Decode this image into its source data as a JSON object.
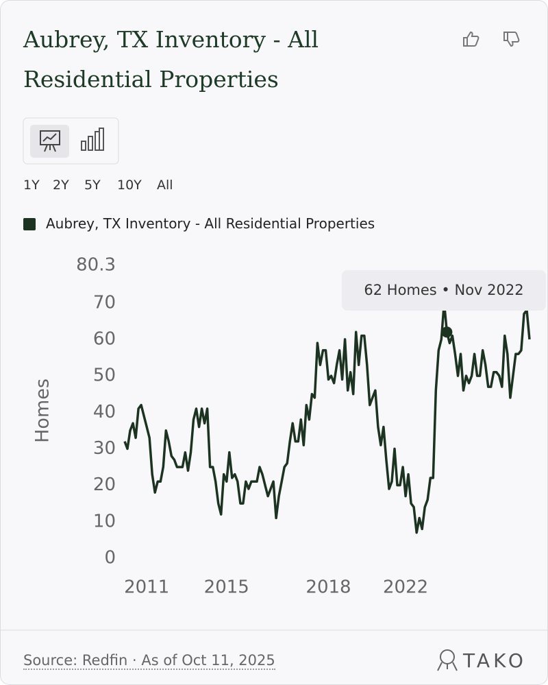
{
  "header": {
    "title": "Aubrey, TX Inventory - All Residential Properties"
  },
  "range_options": [
    "1Y",
    "2Y",
    "5Y",
    "10Y",
    "All"
  ],
  "chart_data": {
    "type": "line",
    "y_label": "Homes",
    "categories": [
      null,
      null,
      null,
      null,
      null,
      null,
      null,
      null,
      "2011",
      null,
      null,
      null,
      null,
      null,
      null,
      null,
      null,
      null,
      null,
      null,
      null,
      null,
      null,
      null,
      null,
      null,
      null,
      null,
      null,
      null,
      null,
      null,
      null,
      null,
      null,
      null,
      null,
      "2015",
      null,
      null,
      null,
      null,
      null,
      null,
      null,
      null,
      null,
      null,
      null,
      null,
      null,
      null,
      null,
      null,
      null,
      null,
      null,
      null,
      null,
      null,
      null,
      null,
      null,
      null,
      null,
      null,
      null,
      null,
      null,
      null,
      null,
      null,
      null,
      null,
      "2018",
      null,
      null,
      null,
      null,
      null,
      null,
      null,
      null,
      null,
      null,
      null,
      null,
      null,
      null,
      null,
      null,
      null,
      null,
      null,
      null,
      null,
      null,
      null,
      null,
      null,
      null,
      null,
      "2022",
      null,
      null,
      null,
      null,
      null,
      null,
      null,
      null,
      null,
      null,
      null,
      null,
      null,
      null,
      null,
      null,
      null,
      null,
      null,
      null,
      null,
      null,
      null,
      null,
      null,
      null,
      null,
      null,
      null,
      null,
      null,
      null,
      null,
      null,
      null,
      null,
      null,
      null,
      null,
      null,
      null,
      null,
      null,
      null,
      null
    ],
    "series": [
      {
        "name": "Aubrey, TX Inventory - All Residential Properties",
        "color": "#1b3320",
        "values": [
          32,
          30,
          35,
          37,
          33,
          41,
          42,
          39,
          36,
          33,
          23,
          18,
          21,
          21,
          25,
          35,
          32,
          28,
          27,
          25,
          25,
          25,
          29,
          24,
          29,
          38,
          41,
          36,
          41,
          37,
          41,
          25,
          25,
          21,
          15,
          12,
          23,
          21,
          29,
          22,
          23,
          21,
          15,
          15,
          21,
          19,
          21,
          21,
          21,
          25,
          23,
          20,
          17,
          19,
          21,
          11,
          17,
          21,
          25,
          26,
          32,
          37,
          32,
          32,
          38,
          31,
          42,
          38,
          45,
          44,
          59,
          53,
          57,
          57,
          49,
          50,
          48,
          53,
          57,
          49,
          60,
          46,
          51,
          45,
          62,
          53,
          61,
          61,
          53,
          42,
          44,
          46,
          36,
          31,
          36,
          27,
          19,
          21,
          30,
          20,
          20,
          25,
          17,
          23,
          15,
          14,
          7,
          11,
          8,
          14,
          16,
          22,
          22,
          46,
          57,
          60,
          70,
          62,
          59,
          61,
          56,
          50,
          56,
          46,
          50,
          48,
          50,
          56,
          50,
          50,
          57,
          53,
          47,
          47,
          51,
          51,
          50,
          47,
          61,
          56,
          44,
          50,
          56,
          56,
          57,
          67,
          68,
          60
        ]
      }
    ],
    "ylim": [
      0,
      80.3
    ],
    "yticks": [
      0,
      10,
      20,
      30,
      40,
      50,
      60,
      70,
      80.3
    ],
    "grid": false,
    "tooltip": "62 Homes • Nov 2022"
  },
  "footer": {
    "source": "Source: Redfin · As of Oct 11, 2025",
    "brand": "TAKO"
  }
}
